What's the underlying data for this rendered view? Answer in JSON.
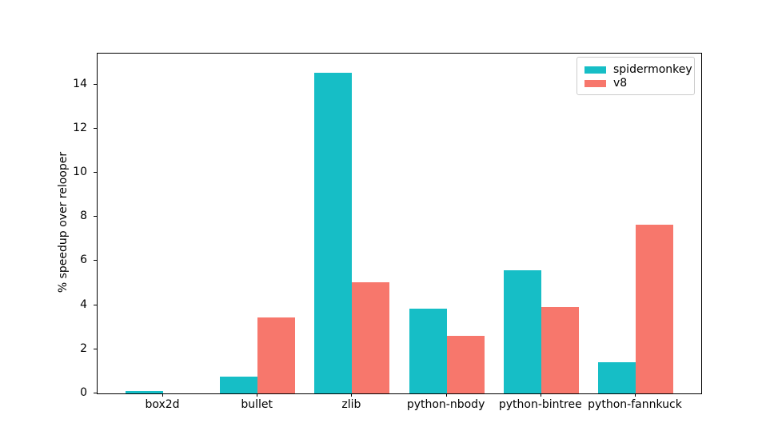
{
  "figure": {
    "background": "#ffffff"
  },
  "chart_data": {
    "type": "bar",
    "title": "",
    "xlabel": "",
    "ylabel": "% speedup over relooper",
    "categories": [
      "box2d",
      "bullet",
      "zlib",
      "python-nbody",
      "python-bintree",
      "python-fannkuck"
    ],
    "series": [
      {
        "name": "spidermonkey",
        "color": "#16bec6",
        "values": [
          0.1,
          0.75,
          14.55,
          3.85,
          5.6,
          1.4
        ]
      },
      {
        "name": "v8",
        "color": "#f7776c",
        "values": [
          0.0,
          3.45,
          5.05,
          2.6,
          3.9,
          7.65
        ]
      }
    ],
    "ylim": [
      0,
      15.4
    ],
    "yticks": [
      0,
      2,
      4,
      6,
      8,
      10,
      12,
      14
    ],
    "grid": false,
    "legend_position": "upper right"
  }
}
